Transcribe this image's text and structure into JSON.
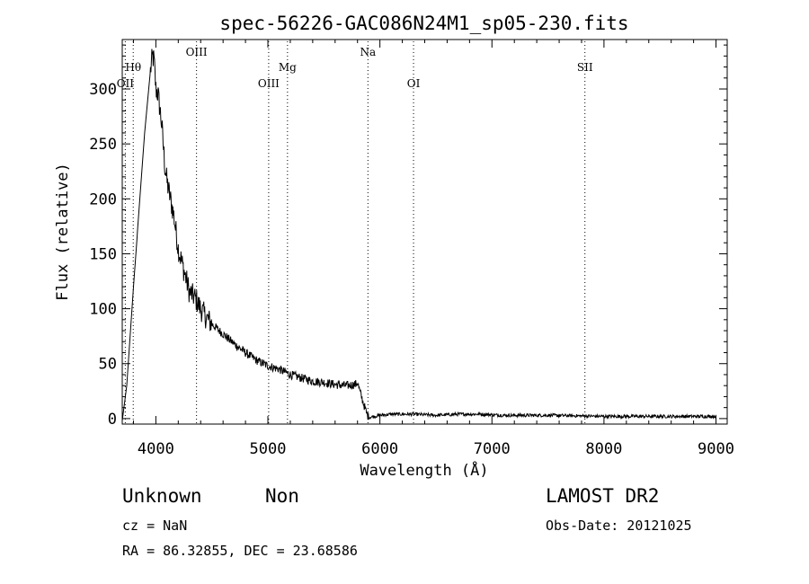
{
  "chart_data": {
    "type": "line",
    "title": "spec-56226-GAC086N24M1_sp05-230.fits",
    "xlabel": "Wavelength (Å)",
    "ylabel": "Flux (relative)",
    "xlim": [
      3700,
      9100
    ],
    "ylim": [
      -5,
      345
    ],
    "x_ticks": [
      4000,
      5000,
      6000,
      7000,
      8000,
      9000
    ],
    "y_ticks": [
      0,
      50,
      100,
      150,
      200,
      250,
      300
    ],
    "grid": false,
    "series": [
      {
        "x": [
          3700,
          3740,
          3800,
          3850,
          3900,
          3950,
          3970,
          3985,
          4000,
          4020,
          4050,
          4080,
          4100,
          4130,
          4160,
          4200,
          4250,
          4300,
          4350,
          4400,
          4450,
          4500,
          4600,
          4700,
          4800,
          4900,
          5000,
          5100,
          5200,
          5300,
          5400,
          5500,
          5600,
          5700,
          5780,
          5800,
          5820,
          5850,
          5880,
          5900,
          5950,
          6000,
          6100,
          6300,
          6500,
          6700,
          6900,
          7100,
          7500,
          8000,
          8500,
          9000
        ],
        "y": [
          -2,
          30,
          120,
          190,
          260,
          315,
          330,
          325,
          300,
          295,
          270,
          230,
          215,
          200,
          185,
          155,
          135,
          115,
          110,
          100,
          92,
          86,
          77,
          68,
          60,
          53,
          48,
          45,
          40,
          37,
          34,
          33,
          31,
          30,
          31,
          33,
          25,
          15,
          5,
          1,
          2,
          3,
          4,
          4,
          3,
          4,
          4,
          3,
          3,
          2,
          2,
          2
        ]
      }
    ],
    "lines": [
      {
        "label": "Hθ",
        "x": 3798,
        "row": 1
      },
      {
        "label": "OII",
        "x": 3727,
        "row": 2
      },
      {
        "label": "OIII",
        "x": 4363,
        "row": 0
      },
      {
        "label": "OIII",
        "x": 5007,
        "row": 2
      },
      {
        "label": "Mg",
        "x": 5175,
        "row": 1
      },
      {
        "label": "Na",
        "x": 5893,
        "row": 0
      },
      {
        "label": "OI",
        "x": 6300,
        "row": 2
      },
      {
        "label": "SII",
        "x": 7830,
        "row": 1
      }
    ]
  },
  "info": {
    "class": "Unknown",
    "subclass": "Non",
    "cz": "cz = NaN",
    "coords": "RA =  86.32855, DEC =  23.68586",
    "survey": "LAMOST DR2",
    "obs_date": "Obs-Date: 20121025"
  }
}
